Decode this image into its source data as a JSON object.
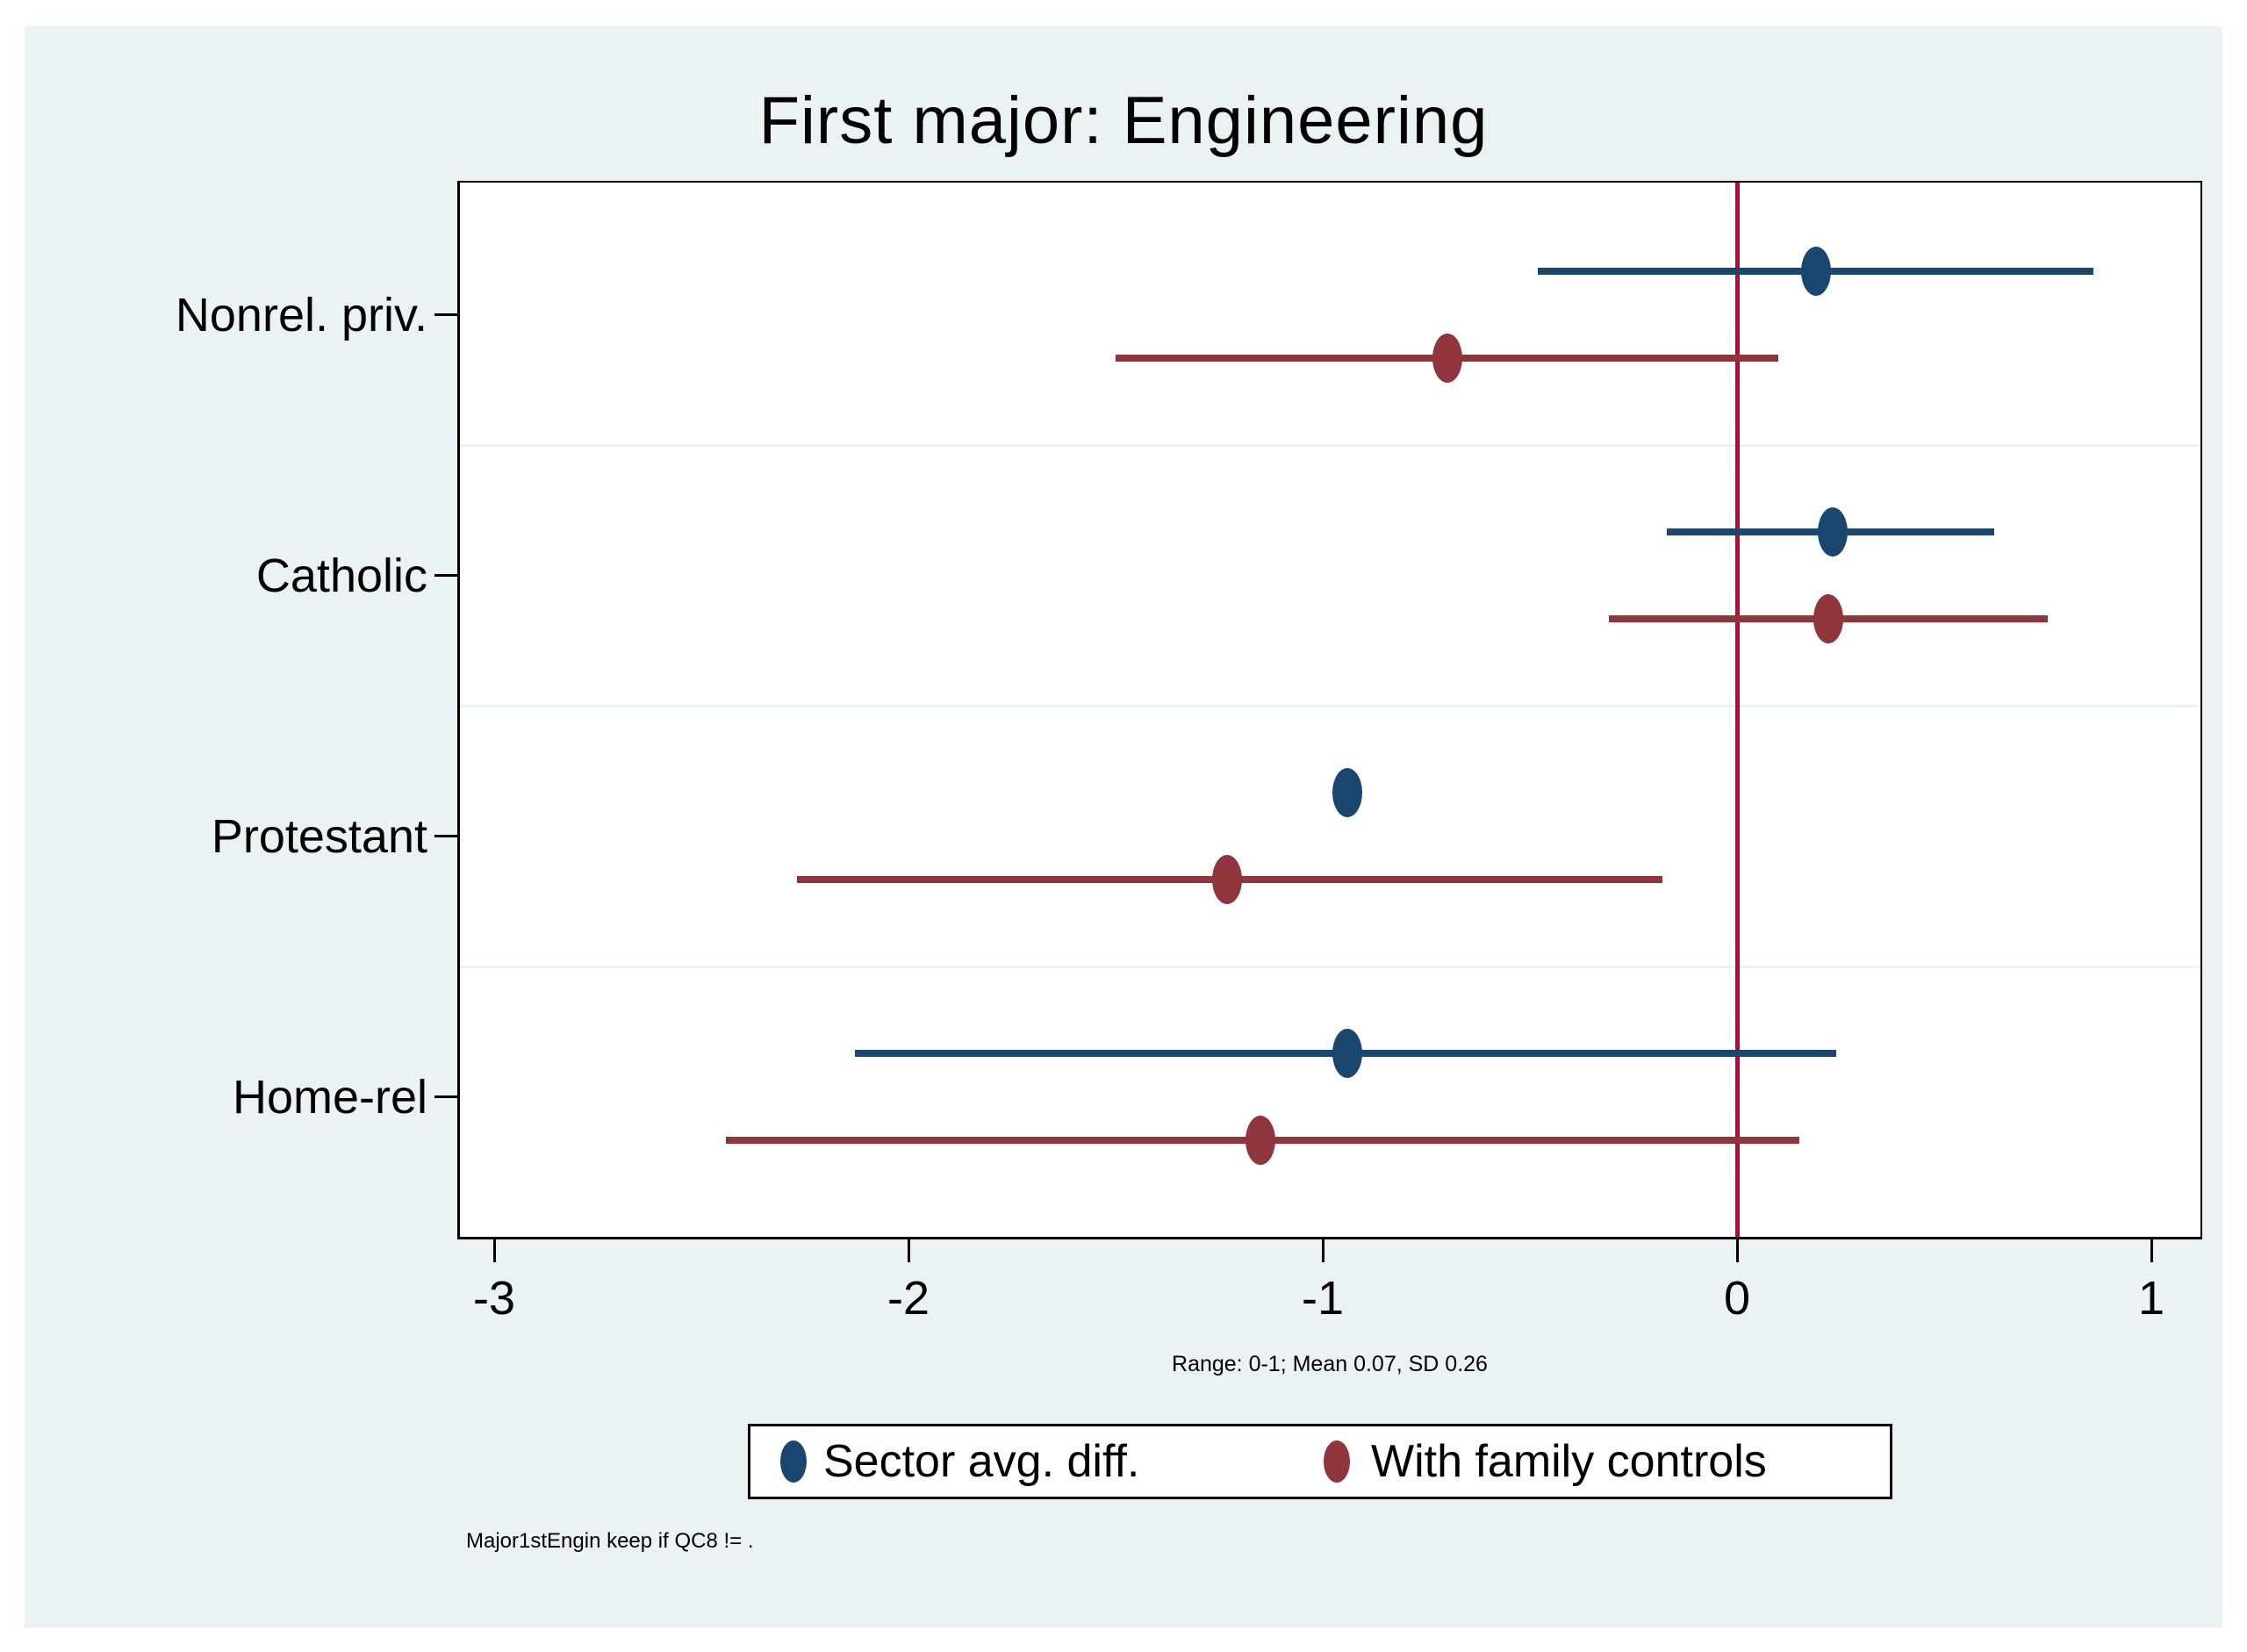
{
  "chart_data": {
    "type": "scatter",
    "subtype": "dot-and-ci-forest-plot",
    "title": "First major: Engineering",
    "categories": [
      "Nonrel. priv.",
      "Catholic",
      "Protestant",
      "Home-rel"
    ],
    "series": [
      {
        "name": "Sector avg. diff.",
        "color": "#1a476f",
        "estimates": [
          0.19,
          0.23,
          -0.94,
          -0.94
        ],
        "ci_low": [
          -0.48,
          -0.17,
          null,
          -2.13
        ],
        "ci_high": [
          0.86,
          0.62,
          null,
          0.24
        ]
      },
      {
        "name": "With family controls",
        "color": "#90353b",
        "estimates": [
          -0.7,
          0.22,
          -1.23,
          -1.15
        ],
        "ci_low": [
          -1.5,
          -0.31,
          -2.27,
          -2.44
        ],
        "ci_high": [
          0.1,
          0.75,
          -0.18,
          0.15
        ]
      }
    ],
    "xticks": [
      -3,
      -2,
      -1,
      0,
      1
    ],
    "xtick_labels": [
      "-3",
      "-2",
      "-1",
      "0",
      "1"
    ],
    "xlim": [
      -3.09,
      1.12
    ],
    "zero_line_x": 0,
    "grid": "between-category horizontal lines",
    "legend_position": "bottom-center boxed",
    "xlabel": "Range: 0-1; Mean 0.07, SD 0.26",
    "footnote": "Major1stEngin keep if QC8 != .",
    "colors": {
      "zero_line": "#c10534",
      "canvas_background": "#eaf2f3",
      "plot_background": "#ffffff",
      "gridline": "#eaf2f3",
      "axis_text": "#000000"
    }
  }
}
